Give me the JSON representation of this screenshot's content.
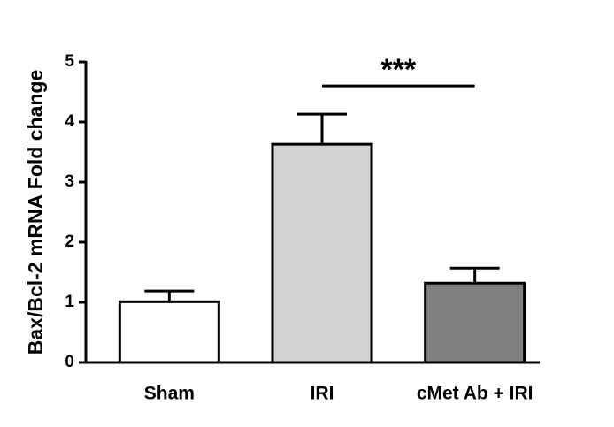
{
  "chart_data": {
    "type": "bar",
    "y_label": "Bax/Bcl-2 mRNA Fold change",
    "categories": [
      "Sham",
      "IRI",
      "cMet Ab + IRI"
    ],
    "values": [
      1.01,
      3.63,
      1.32
    ],
    "errors": [
      0.18,
      0.5,
      0.25
    ],
    "colors": [
      "#ffffff",
      "#d3d3d3",
      "#808080"
    ],
    "ylim": [
      0,
      5
    ],
    "yticks": [
      0,
      1,
      2,
      3,
      4,
      5
    ],
    "annotations": [
      {
        "text": "***",
        "between": [
          1,
          2
        ]
      }
    ]
  }
}
